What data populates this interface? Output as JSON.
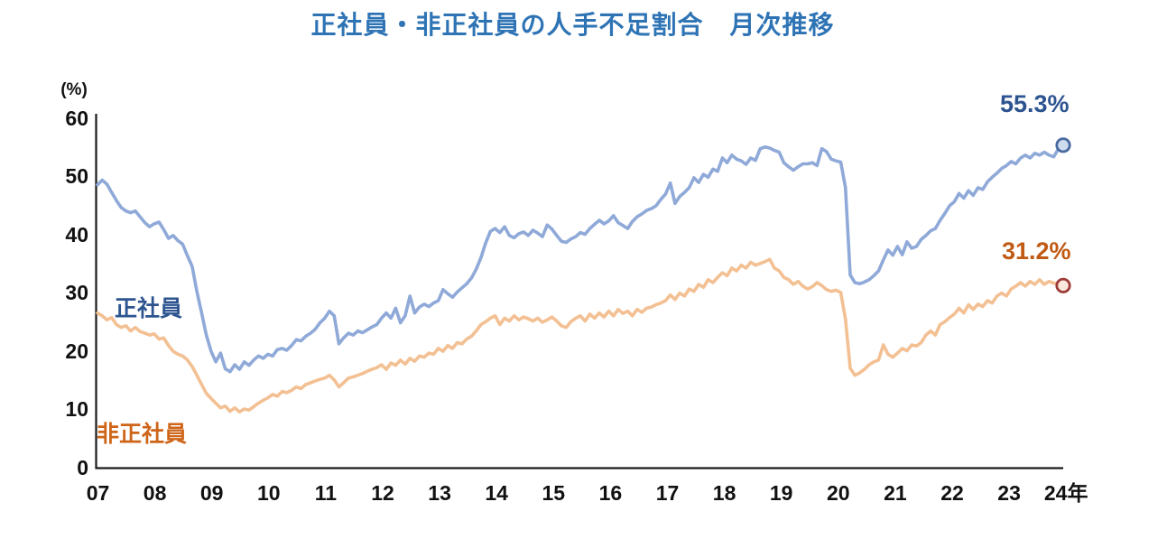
{
  "title": "正社員・非正社員の人手不足割合　月次推移",
  "chart_data": {
    "type": "line",
    "title": "正社員・非正社員の人手不足割合　月次推移",
    "y_axis_unit_label": "(%)",
    "ylim": [
      0,
      60
    ],
    "y_ticks": [
      0,
      10,
      20,
      30,
      40,
      50,
      60
    ],
    "x_tick_labels": [
      "07",
      "08",
      "09",
      "10",
      "11",
      "12",
      "13",
      "14",
      "15",
      "16",
      "17",
      "18",
      "19",
      "20",
      "21",
      "22",
      "23",
      "24年"
    ],
    "x_start": "2007-01",
    "x_end": "2024-01",
    "x_interval": "monthly",
    "grid": false,
    "legend_position": "inline-labels",
    "series": [
      {
        "name": "正社員",
        "end_label": "55.3%",
        "end_value": 55.3,
        "color": "#8FA9D8",
        "label_color": "#2D5490",
        "end_marker": {
          "fill": "#CFDCF0",
          "stroke": "#48699E"
        },
        "values": [
          48.5,
          49.3,
          48.6,
          47.2,
          45.8,
          44.6,
          44.0,
          43.7,
          44.0,
          43.0,
          42.0,
          41.3,
          41.8,
          42.1,
          40.8,
          39.3,
          39.8,
          38.9,
          38.3,
          36.3,
          34.5,
          30.2,
          26.5,
          22.7,
          19.9,
          18.1,
          19.6,
          16.9,
          16.4,
          17.6,
          16.8,
          18.1,
          17.5,
          18.4,
          19.1,
          18.7,
          19.4,
          19.1,
          20.2,
          20.4,
          20.1,
          20.9,
          21.9,
          21.7,
          22.5,
          23.0,
          23.7,
          24.8,
          25.6,
          26.8,
          26.0,
          21.2,
          22.2,
          23.0,
          22.7,
          23.4,
          23.1,
          23.6,
          24.1,
          24.5,
          25.6,
          26.5,
          25.6,
          27.3,
          24.8,
          26.0,
          29.4,
          26.5,
          27.5,
          28.0,
          27.6,
          28.2,
          28.6,
          30.5,
          29.8,
          29.2,
          30.1,
          30.8,
          31.5,
          32.5,
          34.0,
          36.0,
          38.5,
          40.5,
          41.0,
          40.3,
          41.3,
          39.8,
          39.4,
          40.1,
          40.4,
          39.8,
          40.7,
          40.2,
          39.6,
          41.6,
          40.9,
          39.8,
          38.8,
          38.6,
          39.2,
          39.6,
          40.3,
          40.0,
          41.0,
          41.7,
          42.4,
          41.8,
          42.3,
          43.2,
          42.0,
          41.5,
          41.0,
          42.2,
          43.0,
          43.5,
          44.1,
          44.4,
          44.9,
          46.0,
          46.9,
          48.8,
          45.3,
          46.5,
          47.2,
          48.0,
          49.7,
          48.9,
          50.3,
          49.8,
          51.2,
          50.8,
          53.1,
          52.3,
          53.6,
          52.9,
          52.6,
          52.0,
          53.1,
          52.7,
          54.7,
          55.0,
          54.8,
          54.4,
          54.1,
          52.3,
          51.6,
          51.0,
          51.6,
          52.1,
          52.1,
          52.3,
          51.8,
          54.7,
          54.2,
          52.9,
          52.6,
          52.4,
          48.1,
          33.0,
          31.7,
          31.5,
          31.8,
          32.2,
          32.9,
          33.7,
          35.6,
          37.3,
          36.4,
          37.9,
          36.5,
          38.7,
          37.6,
          37.9,
          39.1,
          39.8,
          40.6,
          41.0,
          42.4,
          43.6,
          44.9,
          45.6,
          47.0,
          46.2,
          47.5,
          46.7,
          48.0,
          47.7,
          49.0,
          49.8,
          50.5,
          51.3,
          51.8,
          52.5,
          52.1,
          53.1,
          53.6,
          53.1,
          53.9,
          53.6,
          54.1,
          53.6,
          53.3,
          54.7,
          55.3
        ]
      },
      {
        "name": "非正社員",
        "end_label": "31.2%",
        "end_value": 31.2,
        "color": "#F3C093",
        "label_color": "#CE6519",
        "end_marker": {
          "fill": "#FAE8DC",
          "stroke": "#9E3B38"
        },
        "values": [
          26.5,
          26.0,
          25.3,
          25.7,
          24.5,
          24.0,
          24.3,
          23.4,
          24.0,
          23.3,
          23.0,
          22.7,
          22.9,
          22.0,
          22.2,
          20.9,
          19.9,
          19.4,
          19.1,
          18.4,
          17.3,
          15.8,
          14.2,
          12.7,
          11.8,
          11.0,
          10.2,
          10.5,
          9.6,
          10.2,
          9.5,
          10.0,
          9.8,
          10.4,
          11.0,
          11.5,
          11.9,
          12.5,
          12.2,
          13.0,
          12.8,
          13.2,
          13.8,
          13.5,
          14.2,
          14.5,
          14.8,
          15.1,
          15.3,
          15.8,
          15.0,
          13.8,
          14.5,
          15.3,
          15.5,
          15.8,
          16.1,
          16.5,
          16.8,
          17.1,
          17.6,
          16.8,
          17.9,
          17.5,
          18.4,
          17.7,
          18.7,
          18.2,
          19.1,
          18.9,
          19.6,
          19.4,
          20.4,
          19.9,
          20.9,
          20.4,
          21.4,
          21.2,
          22.0,
          22.5,
          23.4,
          24.5,
          25.0,
          25.6,
          26.0,
          24.5,
          25.6,
          25.1,
          26.0,
          25.3,
          25.8,
          25.5,
          25.1,
          25.6,
          24.9,
          25.3,
          25.8,
          25.1,
          24.3,
          24.0,
          25.0,
          25.6,
          26.0,
          25.1,
          26.3,
          25.6,
          26.5,
          25.8,
          26.8,
          26.0,
          27.1,
          26.4,
          26.8,
          26.0,
          27.1,
          26.6,
          27.3,
          27.5,
          27.9,
          28.2,
          28.6,
          29.6,
          28.8,
          29.9,
          29.4,
          30.6,
          30.2,
          31.4,
          30.9,
          32.2,
          31.7,
          32.6,
          33.4,
          32.9,
          34.2,
          33.7,
          34.7,
          34.2,
          35.2,
          34.7,
          35.0,
          35.3,
          35.7,
          34.2,
          33.7,
          32.6,
          32.2,
          31.4,
          31.9,
          31.1,
          30.6,
          31.0,
          31.7,
          31.2,
          30.5,
          30.2,
          30.4,
          30.0,
          25.5,
          17.0,
          15.8,
          16.2,
          16.8,
          17.6,
          18.1,
          18.4,
          21.0,
          19.4,
          18.9,
          19.6,
          20.4,
          20.0,
          21.0,
          20.8,
          21.4,
          22.7,
          23.4,
          22.7,
          24.5,
          25.0,
          25.7,
          26.3,
          27.3,
          26.5,
          27.9,
          27.1,
          28.0,
          27.6,
          28.6,
          28.2,
          29.4,
          29.9,
          29.4,
          30.6,
          31.1,
          31.7,
          31.1,
          31.9,
          31.4,
          32.2,
          31.4,
          31.9,
          31.6,
          31.5,
          31.2
        ]
      }
    ],
    "colors": {
      "title": "#2E74B5",
      "axis": "#1a1a1a"
    }
  }
}
